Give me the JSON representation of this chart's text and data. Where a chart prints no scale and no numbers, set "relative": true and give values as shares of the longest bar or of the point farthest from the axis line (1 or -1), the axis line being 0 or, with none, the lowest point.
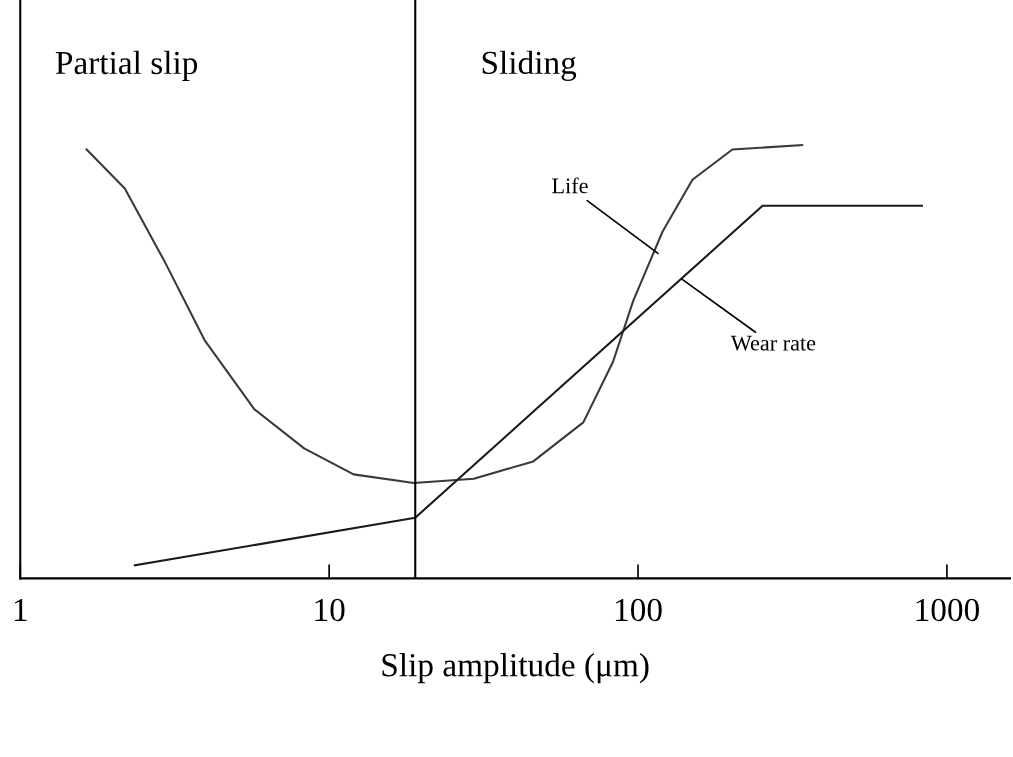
{
  "chart_data": {
    "type": "line",
    "relative": true,
    "log": "x",
    "xlabel": "Slip amplitude (μm)",
    "xlim": [
      1,
      1600
    ],
    "xticks": [
      1,
      10,
      100,
      1000
    ],
    "grid": false,
    "legend": false,
    "marker": "none",
    "line_style": "solid",
    "series": [
      {
        "color": "#3a3a3a",
        "x": [
          1.64,
          2.18,
          2.94,
          3.95,
          5.73,
          8.3,
          12.0,
          18.8,
          29.4,
          45.8,
          66.5,
          83.0,
          96.4,
          120,
          150,
          202,
          340
        ],
        "values": [
          0.99,
          0.9,
          0.73,
          0.55,
          0.39,
          0.3,
          0.24,
          0.22,
          0.23,
          0.27,
          0.36,
          0.5,
          0.64,
          0.8,
          0.92,
          0.99,
          1.0
        ]
      },
      {
        "color": "#1a1a1a",
        "x": [
          2.35,
          19,
          253,
          830
        ],
        "values": [
          0.03,
          0.14,
          0.86,
          0.86
        ]
      }
    ],
    "ref_lines": [
      {
        "axis": "x",
        "value": 19,
        "color": "#000000"
      }
    ],
    "annotations": [
      "Partial slip",
      "Sliding",
      {
        "text": "Life",
        "x": 116,
        "y": 0.75
      },
      {
        "text": "Wear rate",
        "x": 139,
        "y": 0.69
      }
    ]
  }
}
